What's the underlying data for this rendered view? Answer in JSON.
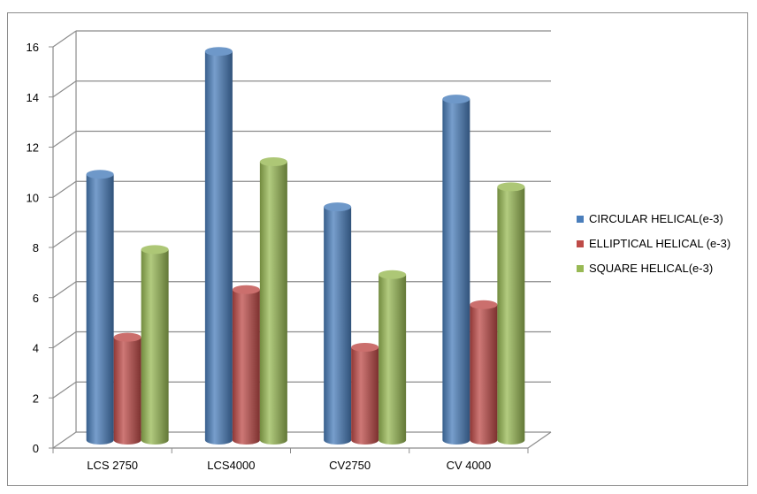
{
  "chart_data": {
    "type": "bar",
    "style": "3d-cylinder",
    "title": "",
    "xlabel": "",
    "ylabel": "",
    "categories": [
      "LCS 2750",
      "LCS4000",
      "CV2750",
      "CV 4000"
    ],
    "ylim": [
      0,
      16
    ],
    "yticks": [
      0,
      2,
      4,
      6,
      8,
      10,
      12,
      14,
      16
    ],
    "grid": true,
    "legend_position": "right",
    "series": [
      {
        "name": "CIRCULAR HELICAL(e-3)",
        "color": "#4a7ebb",
        "values": [
          10.6,
          15.5,
          9.3,
          13.6
        ]
      },
      {
        "name": "ELLIPTICAL HELICAL (e-3)",
        "color": "#be4b48",
        "values": [
          4.1,
          6.0,
          3.7,
          5.4
        ]
      },
      {
        "name": "SQUARE HELICAL(e-3)",
        "color": "#98b954",
        "values": [
          7.6,
          11.1,
          6.6,
          10.1
        ]
      }
    ]
  }
}
